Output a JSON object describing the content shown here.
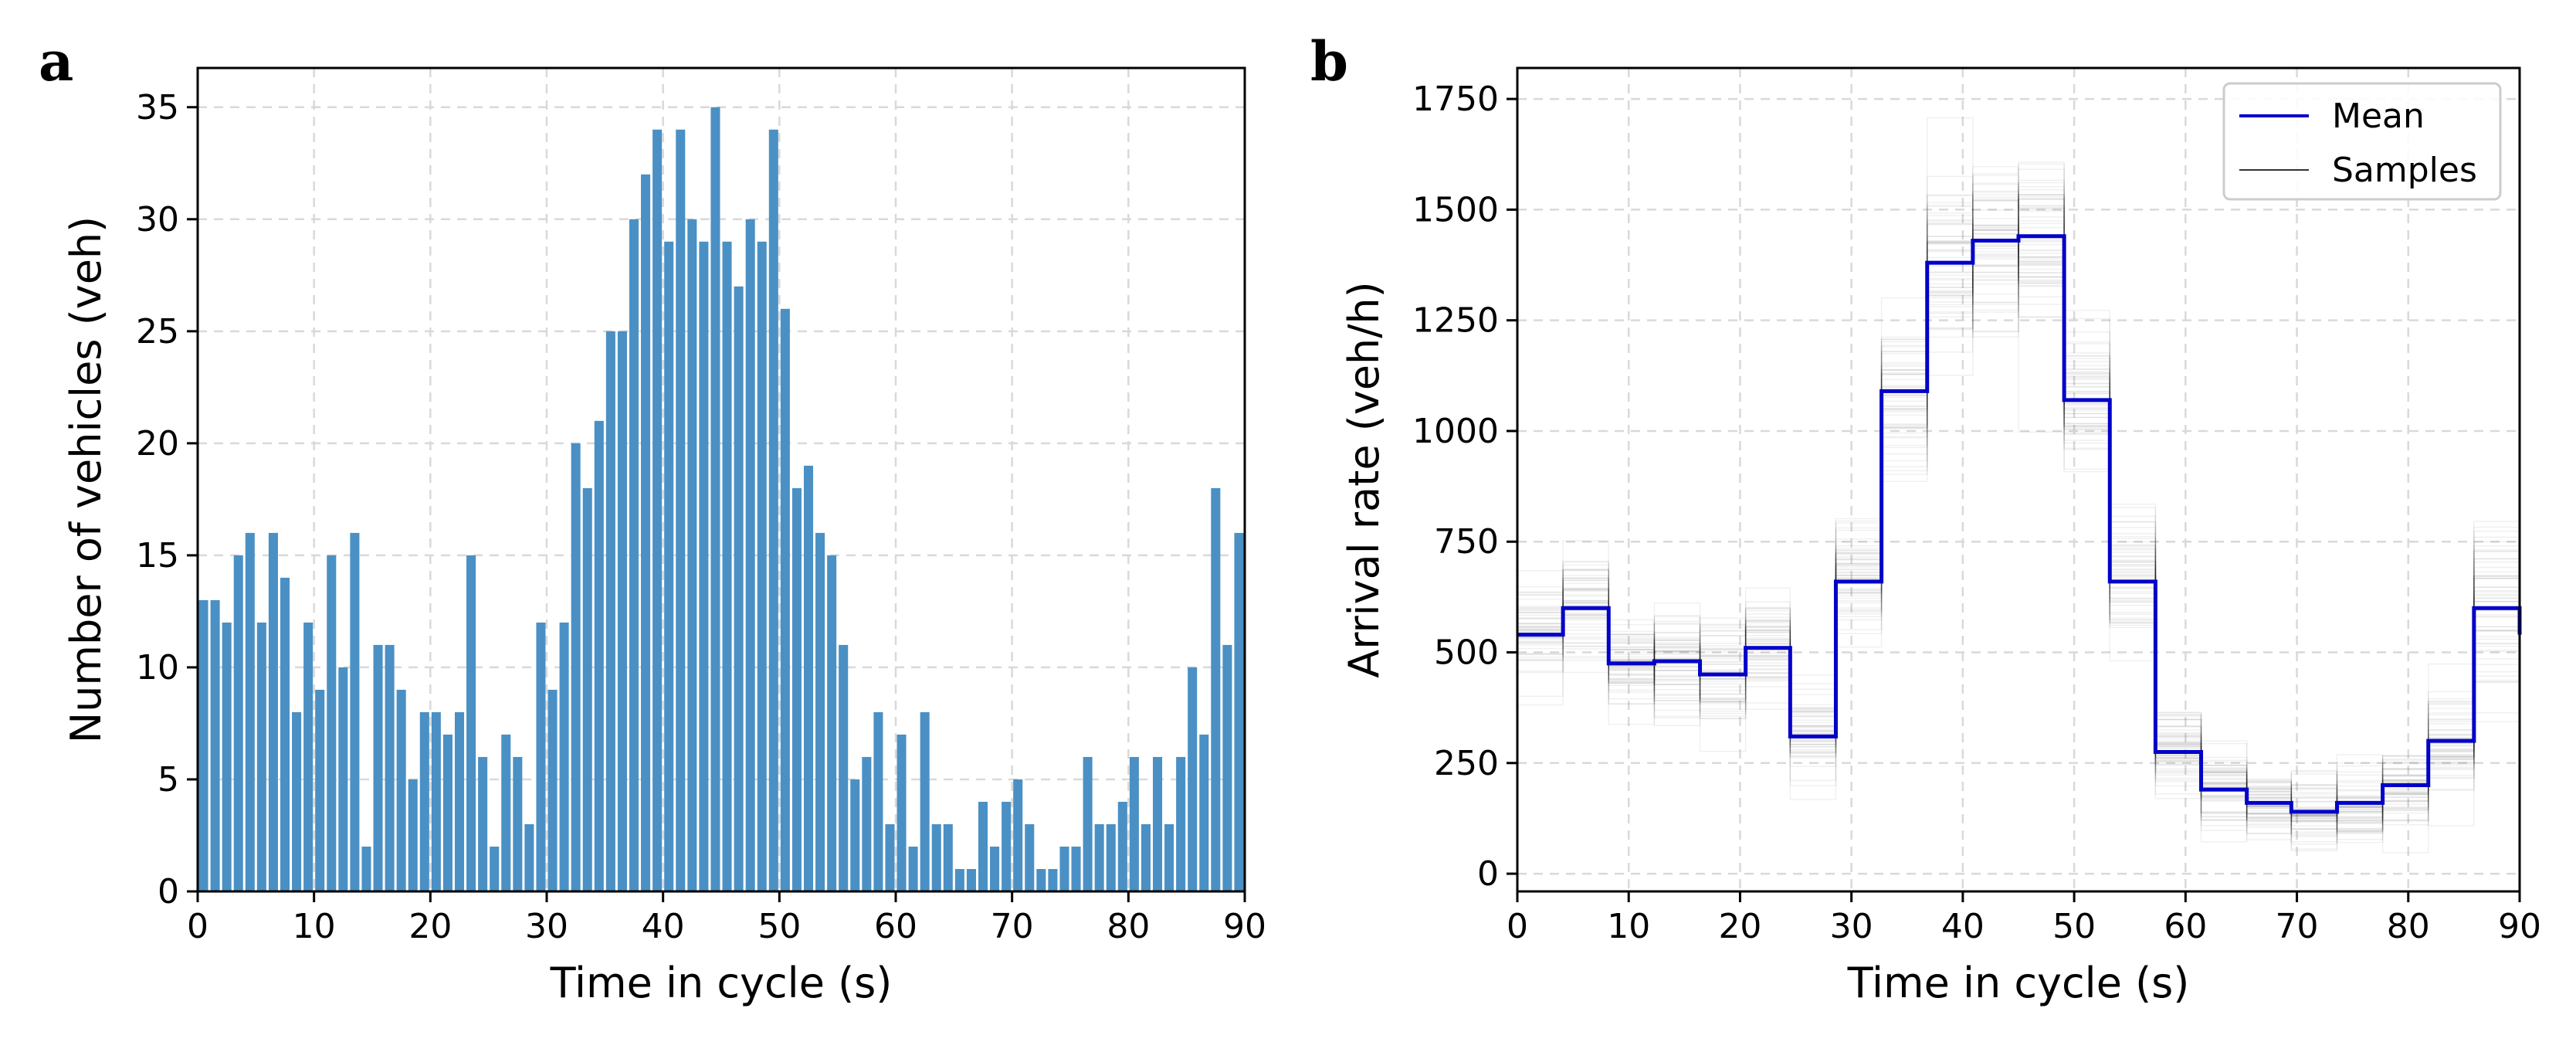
{
  "chart_data": [
    {
      "panel": "a",
      "type": "bar",
      "title": "",
      "xlabel": "Time in cycle (s)",
      "ylabel": "Number of vehicles (veh)",
      "xlim": [
        0,
        90
      ],
      "ylim": [
        0,
        36.75
      ],
      "xticks": [
        0,
        10,
        20,
        30,
        40,
        50,
        60,
        70,
        80,
        90
      ],
      "yticks": [
        0,
        5,
        10,
        15,
        20,
        25,
        30,
        35
      ],
      "grid": true,
      "color": "#4a90c4",
      "x": [
        0,
        1,
        2,
        3,
        4,
        5,
        6,
        7,
        8,
        9,
        10,
        11,
        12,
        13,
        14,
        15,
        16,
        17,
        18,
        19,
        20,
        21,
        22,
        23,
        24,
        25,
        26,
        27,
        28,
        29,
        30,
        31,
        32,
        33,
        34,
        35,
        36,
        37,
        38,
        39,
        40,
        41,
        42,
        43,
        44,
        45,
        46,
        47,
        48,
        49,
        50,
        51,
        52,
        53,
        54,
        55,
        56,
        57,
        58,
        59,
        60,
        61,
        62,
        63,
        64,
        65,
        66,
        67,
        68,
        69,
        70,
        71,
        72,
        73,
        74,
        75,
        76,
        77,
        78,
        79,
        80,
        81,
        82,
        83,
        84,
        85,
        86,
        87,
        88,
        89
      ],
      "values": [
        13,
        13,
        12,
        15,
        16,
        12,
        16,
        14,
        8,
        12,
        9,
        15,
        10,
        16,
        2,
        11,
        11,
        9,
        5,
        8,
        8,
        7,
        8,
        15,
        6,
        2,
        7,
        6,
        3,
        12,
        9,
        12,
        20,
        18,
        21,
        25,
        25,
        30,
        32,
        34,
        29,
        34,
        30,
        29,
        35,
        29,
        27,
        30,
        29,
        34,
        26,
        18,
        19,
        16,
        15,
        11,
        5,
        6,
        8,
        3,
        7,
        2,
        8,
        3,
        3,
        1,
        1,
        4,
        2,
        4,
        5,
        3,
        1,
        1,
        2,
        2,
        6,
        3,
        3,
        4,
        6,
        3,
        6,
        3,
        6,
        10,
        7,
        18,
        11,
        16
      ]
    },
    {
      "panel": "b",
      "type": "line",
      "title": "",
      "xlabel": "Time in cycle (s)",
      "ylabel": "Arrival rate (veh/h)",
      "xlim": [
        0,
        90
      ],
      "ylim": [
        -40,
        1820
      ],
      "xticks": [
        0,
        10,
        20,
        30,
        40,
        50,
        60,
        70,
        80,
        90
      ],
      "yticks": [
        0,
        250,
        500,
        750,
        1000,
        1250,
        1500,
        1750
      ],
      "grid": true,
      "legend": {
        "position": "top-right",
        "items": [
          "Mean",
          "Samples"
        ]
      },
      "series": [
        {
          "name": "Mean",
          "color": "#0000c8",
          "step": true,
          "bin_edges": [
            0,
            4.1,
            8.2,
            12.3,
            16.4,
            20.5,
            24.5,
            28.6,
            32.7,
            36.8,
            40.9,
            45,
            49.1,
            53.2,
            57.3,
            61.4,
            65.5,
            69.5,
            73.6,
            77.7,
            81.8,
            85.9,
            90
          ],
          "values": [
            540,
            600,
            475,
            480,
            450,
            510,
            310,
            660,
            1090,
            1380,
            1430,
            1440,
            1070,
            660,
            275,
            190,
            160,
            140,
            160,
            200,
            300,
            600
          ]
        },
        {
          "name": "Samples",
          "color": "#000000",
          "step": true,
          "note_spread": [
            60,
            65,
            60,
            60,
            60,
            60,
            50,
            70,
            90,
            100,
            100,
            110,
            90,
            70,
            50,
            45,
            40,
            40,
            40,
            45,
            55,
            90
          ]
        }
      ],
      "trailing_point": {
        "x": 90,
        "y": 540
      }
    }
  ]
}
